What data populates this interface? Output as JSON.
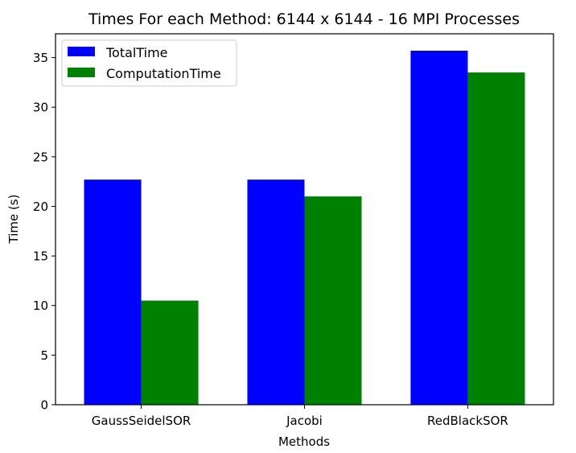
{
  "chart_data": {
    "type": "bar",
    "title": "Times For each Method: 6144 x 6144 - 16 MPI Processes",
    "xlabel": "Methods",
    "ylabel": "Time (s)",
    "categories": [
      "GaussSeidelSOR",
      "Jacobi",
      "RedBlackSOR"
    ],
    "ylim": [
      0,
      37.4
    ],
    "yticks": [
      0,
      5,
      10,
      15,
      20,
      25,
      30,
      35
    ],
    "grid": false,
    "legend_position": "top-left",
    "series": [
      {
        "name": "TotalTime",
        "color": "#0000ff",
        "values": [
          22.7,
          22.7,
          35.7
        ]
      },
      {
        "name": "ComputationTime",
        "color": "#008000",
        "values": [
          10.5,
          21.0,
          33.5
        ]
      }
    ]
  }
}
